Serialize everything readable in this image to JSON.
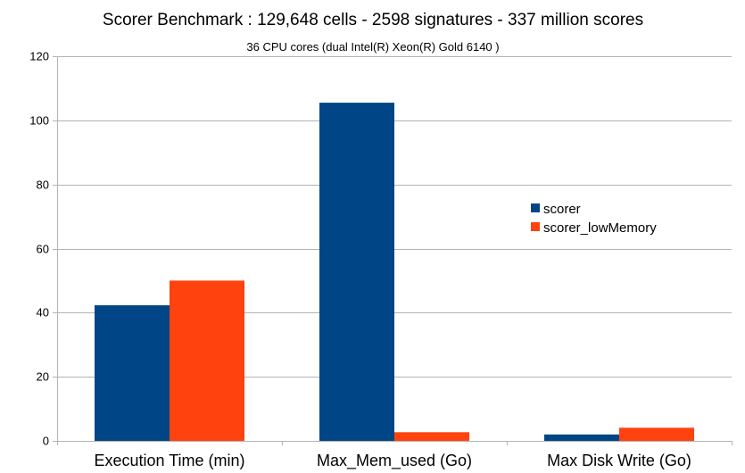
{
  "chart_data": {
    "type": "bar",
    "title": "Scorer Benchmark : 129,648 cells - 2598 signatures - 337 million scores",
    "subtitle": "36 CPU cores (dual Intel(R) Xeon(R) Gold 6140 )",
    "xlabel": "",
    "ylabel": "",
    "categories": [
      "Execution Time (min)",
      "Max_Mem_used (Go)",
      "Max Disk Write (Go)"
    ],
    "series": [
      {
        "name": "scorer",
        "values": [
          42.3,
          105.5,
          2.0
        ],
        "color": "#004586"
      },
      {
        "name": "scorer_lowMemory",
        "values": [
          50.0,
          2.7,
          4.1
        ],
        "color": "#ff420e"
      }
    ],
    "ylim": [
      0,
      120
    ],
    "yticks": [
      0,
      20,
      40,
      60,
      80,
      100,
      120
    ],
    "grid": true,
    "legend_position": "right"
  }
}
